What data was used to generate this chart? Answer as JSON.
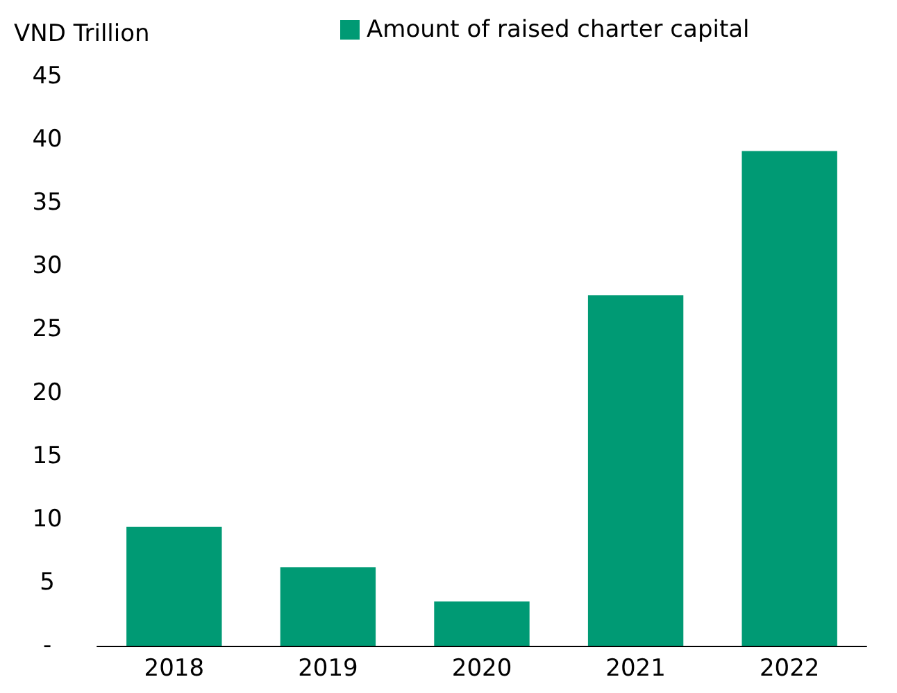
{
  "chart_data": {
    "type": "bar",
    "ylabel": "VND Trillion",
    "categories": [
      "2018",
      "2019",
      "2020",
      "2021",
      "2022"
    ],
    "series": [
      {
        "name": "Amount of raised charter capital",
        "color": "#009a74",
        "values": [
          9.4,
          6.2,
          3.5,
          27.7,
          39.1
        ]
      }
    ],
    "ylim": [
      0,
      45
    ],
    "yticks": [
      {
        "value": 0,
        "label": "-"
      },
      5,
      10,
      15,
      20,
      25,
      30,
      35,
      40,
      45
    ],
    "grid": false,
    "legend": "top"
  }
}
